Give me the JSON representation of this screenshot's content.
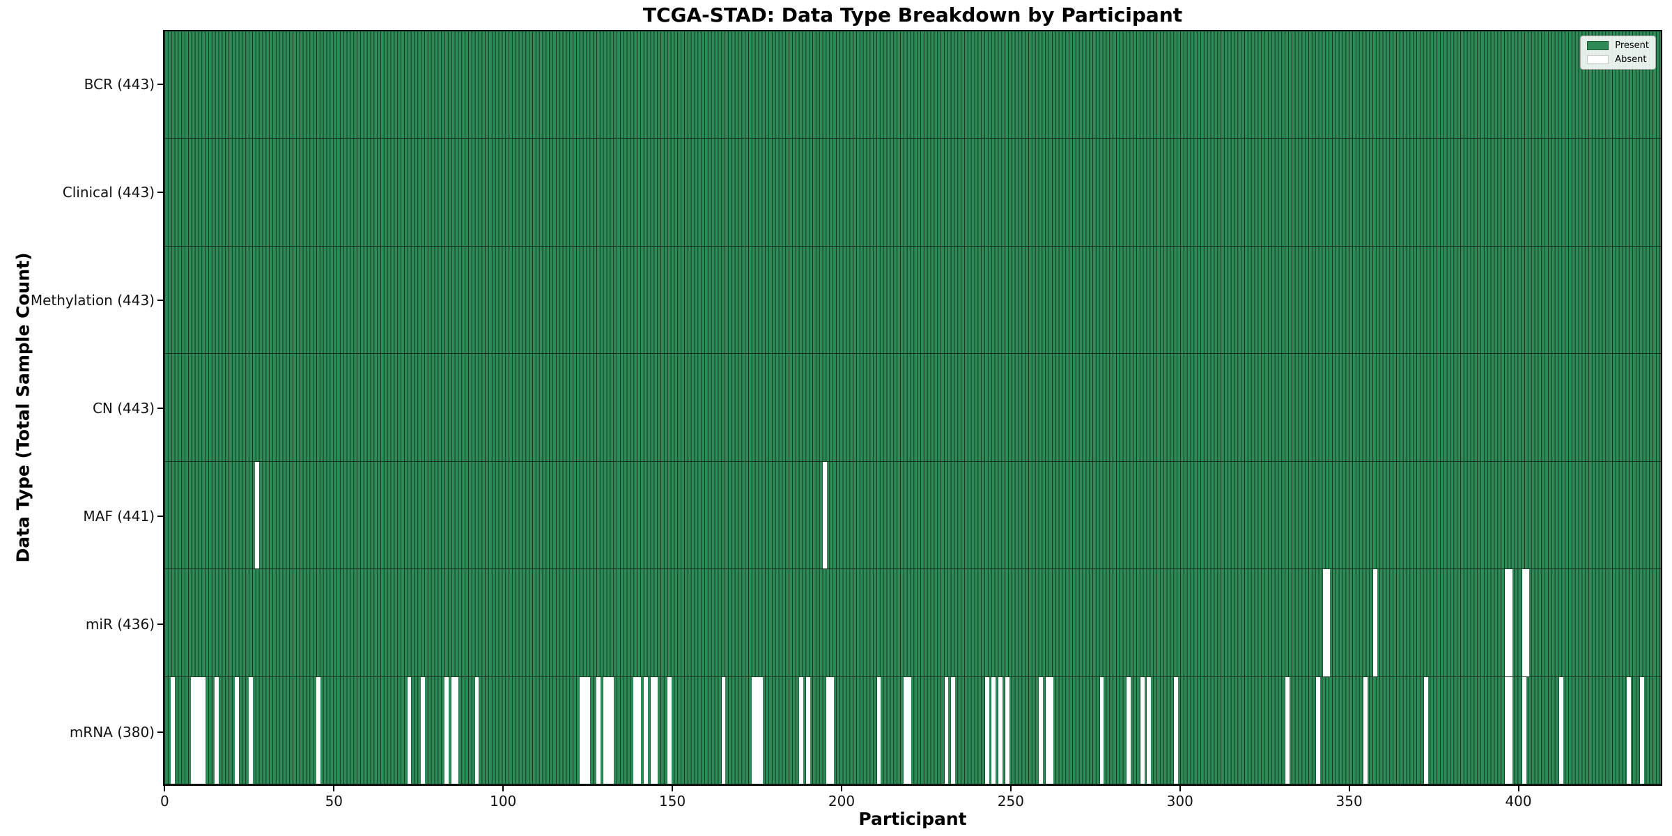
{
  "figure": {
    "title": "TCGA-STAD: Data Type Breakdown by Participant",
    "xlabel": "Participant",
    "ylabel": "Data Type (Total Sample Count)"
  },
  "legend": {
    "present_label": "Present",
    "absent_label": "Absent"
  },
  "colors": {
    "present": "#2e8b57",
    "absent": "#ffffff",
    "bar_edge": "#11301e",
    "axis": "#000000"
  },
  "chart_data": {
    "type": "heatmap",
    "title": "TCGA-STAD: Data Type Breakdown by Participant",
    "xlabel": "Participant",
    "ylabel": "Data Type (Total Sample Count)",
    "n_participants": 443,
    "x_ticks": [
      0,
      50,
      100,
      150,
      200,
      250,
      300,
      350,
      400
    ],
    "xlim": [
      -0.5,
      442.5
    ],
    "grid": false,
    "legend_position": "upper right",
    "legend": [
      {
        "label": "Present",
        "color": "#2e8b57"
      },
      {
        "label": "Absent",
        "color": "#ffffff"
      }
    ],
    "rows": [
      {
        "name": "BCR",
        "label": "BCR (443)",
        "total": 443,
        "absent": []
      },
      {
        "name": "Clinical",
        "label": "Clinical (443)",
        "total": 443,
        "absent": []
      },
      {
        "name": "Methylation",
        "label": "Methylation (443)",
        "total": 443,
        "absent": []
      },
      {
        "name": "CN",
        "label": "CN (443)",
        "total": 443,
        "absent": []
      },
      {
        "name": "MAF",
        "label": "MAF (441)",
        "total": 441,
        "absent": [
          27,
          195
        ]
      },
      {
        "name": "miR",
        "label": "miR (436)",
        "total": 436,
        "absent": [
          343,
          344,
          358,
          397,
          398,
          402,
          403
        ]
      },
      {
        "name": "mRNA",
        "label": "mRNA (380)",
        "total": 380,
        "absent": [
          2,
          8,
          9,
          10,
          11,
          15,
          21,
          25,
          45,
          72,
          76,
          83,
          85,
          86,
          92,
          123,
          124,
          125,
          128,
          130,
          131,
          132,
          139,
          140,
          142,
          144,
          145,
          149,
          165,
          174,
          175,
          176,
          188,
          190,
          196,
          197,
          211,
          219,
          220,
          231,
          233,
          243,
          245,
          247,
          249,
          259,
          261,
          262,
          277,
          285,
          289,
          291,
          299,
          332,
          341,
          355,
          373,
          397,
          398,
          402,
          413,
          433,
          437
        ]
      }
    ]
  }
}
